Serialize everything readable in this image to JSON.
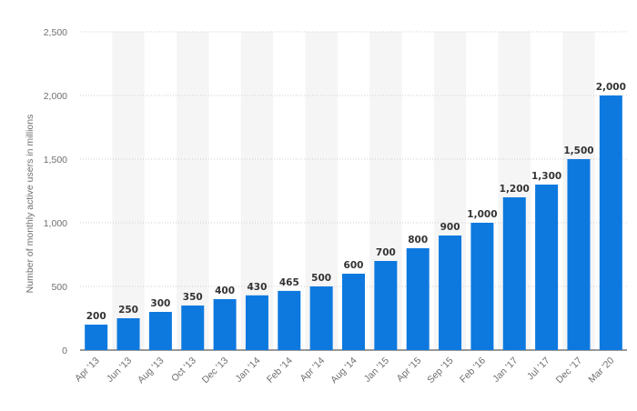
{
  "chart_data": {
    "type": "bar",
    "title": "",
    "xlabel": "",
    "ylabel": "Number of monthly active users in millions",
    "ylim": [
      0,
      2500
    ],
    "yticks": [
      0,
      500,
      1000,
      1500,
      2000,
      2500
    ],
    "ytick_labels": [
      "0",
      "500",
      "1,000",
      "1,500",
      "2,000",
      "2,500"
    ],
    "grid": true,
    "legend": "none",
    "categories": [
      "Apr '13",
      "Jun '13",
      "Aug '13",
      "Oct '13",
      "Dec '13",
      "Jan '14",
      "Feb '14",
      "Apr '14",
      "Aug '14",
      "Jan '15",
      "Apr '15",
      "Sep '15",
      "Feb '16",
      "Jan '17",
      "Jul '17",
      "Dec '17",
      "Mar '20"
    ],
    "values": [
      200,
      250,
      300,
      350,
      400,
      430,
      465,
      500,
      600,
      700,
      800,
      900,
      1000,
      1200,
      1300,
      1500,
      2000
    ],
    "data_labels": [
      "200",
      "250",
      "300",
      "350",
      "400",
      "430",
      "465",
      "500",
      "600",
      "700",
      "800",
      "900",
      "1,000",
      "1,200",
      "1,300",
      "1,500",
      "2,000"
    ],
    "colors": {
      "bar": "#0d79df",
      "band": "#f5f5f5",
      "grid": "#cfcfcf"
    }
  }
}
